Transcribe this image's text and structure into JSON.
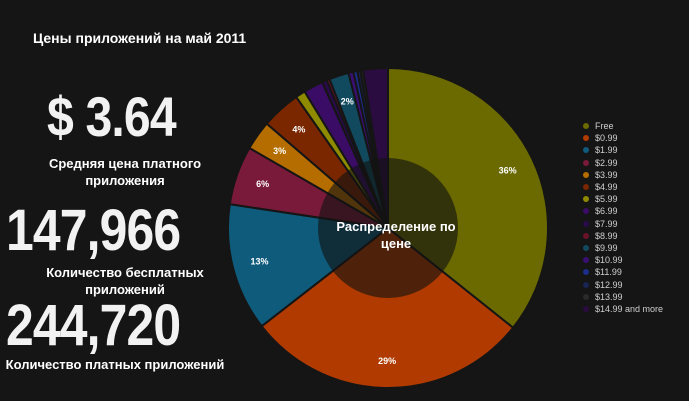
{
  "title": "Цены приложений на май 2011",
  "stats": [
    {
      "value": "$ 3.64",
      "caption": "Средняя цена платного приложения"
    },
    {
      "value": "147,966",
      "caption": "Количество бесплатных приложений"
    },
    {
      "value": "244,720",
      "caption": "Количество платных приложений"
    }
  ],
  "chart_data": {
    "type": "pie",
    "donut": true,
    "center_label": "Распределение по цене",
    "legend_position": "right",
    "slices": [
      {
        "label": "Free",
        "value": 36,
        "color": "#6b6a00",
        "value_label": "36%"
      },
      {
        "label": "$0.99",
        "value": 29,
        "color": "#b13a00",
        "value_label": "29%"
      },
      {
        "label": "$1.99",
        "value": 13,
        "color": "#0e5b7c",
        "value_label": "13%"
      },
      {
        "label": "$2.99",
        "value": 6,
        "color": "#7a1a3a",
        "value_label": "6%"
      },
      {
        "label": "$3.99",
        "value": 3,
        "color": "#b56d00",
        "value_label": "3%"
      },
      {
        "label": "$4.99",
        "value": 4,
        "color": "#7a2700",
        "value_label": "4%"
      },
      {
        "label": "$5.99",
        "value": 1,
        "color": "#8e8b00",
        "value_label": ""
      },
      {
        "label": "$6.99",
        "value": 2,
        "color": "#3a0c66",
        "value_label": ""
      },
      {
        "label": "$7.99",
        "value": 0.5,
        "color": "#2a0a4a",
        "value_label": ""
      },
      {
        "label": "$8.99",
        "value": 0.3,
        "color": "#6a1228",
        "value_label": ""
      },
      {
        "label": "$9.99",
        "value": 2,
        "color": "#114a5e",
        "value_label": "2%"
      },
      {
        "label": "$10.99",
        "value": 0.5,
        "color": "#3a0f72",
        "value_label": ""
      },
      {
        "label": "$11.99",
        "value": 0.4,
        "color": "#1a2e8a",
        "value_label": ""
      },
      {
        "label": "$12.99",
        "value": 0.3,
        "color": "#182452",
        "value_label": ""
      },
      {
        "label": "$13.99",
        "value": 0.3,
        "color": "#222222",
        "value_label": ""
      },
      {
        "label": "$14.99 and more",
        "value": 2.5,
        "color": "#2a0c40",
        "value_label": ""
      }
    ]
  }
}
